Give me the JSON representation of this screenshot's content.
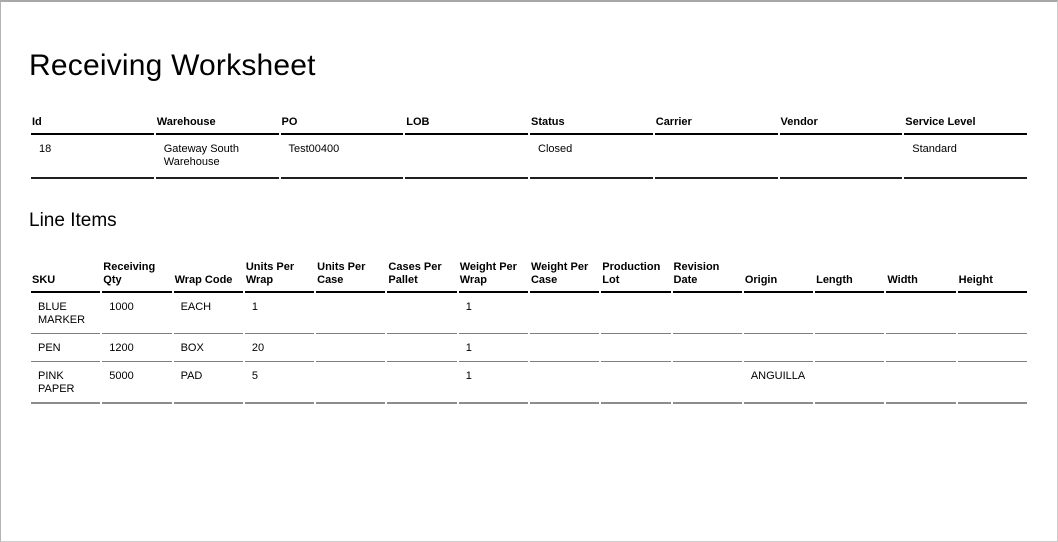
{
  "page": {
    "title": "Receiving Worksheet"
  },
  "summary_table": {
    "columns": [
      "Id",
      "Warehouse",
      "PO",
      "LOB",
      "Status",
      "Carrier",
      "Vendor",
      "Service Level"
    ],
    "rows": [
      [
        "18",
        "Gateway South Warehouse",
        "Test00400",
        "",
        "Closed",
        "",
        "",
        "Standard"
      ]
    ]
  },
  "line_items": {
    "heading": "Line Items",
    "columns": [
      "SKU",
      "Receiving Qty",
      "Wrap Code",
      "Units Per Wrap",
      "Units Per Case",
      "Cases Per Pallet",
      "Weight Per Wrap",
      "Weight Per Case",
      "Production Lot",
      "Revision Date",
      "Origin",
      "Length",
      "Width",
      "Height"
    ],
    "rows": [
      [
        "BLUE MARKER",
        "1000",
        "EACH",
        "1",
        "",
        "",
        "1",
        "",
        "",
        "",
        "",
        "",
        "",
        ""
      ],
      [
        "PEN",
        "1200",
        "BOX",
        "20",
        "",
        "",
        "1",
        "",
        "",
        "",
        "",
        "",
        "",
        ""
      ],
      [
        "PINK PAPER",
        "5000",
        "PAD",
        "5",
        "",
        "",
        "1",
        "",
        "",
        "",
        "ANGUILLA",
        "",
        "",
        ""
      ]
    ]
  },
  "colors": {
    "header_rule": "#000000",
    "row_rule": "#7f7f7f",
    "frame": "#a8a8a8",
    "text": "#000000"
  }
}
